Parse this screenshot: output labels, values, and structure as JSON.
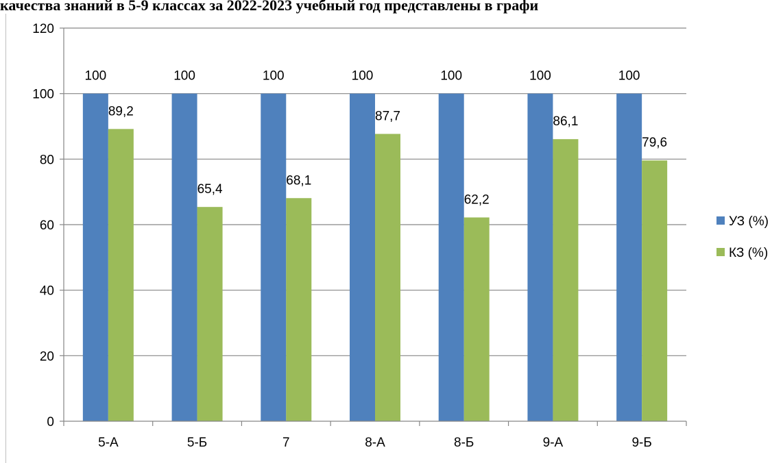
{
  "document": {
    "heading": "качества знаний в 5-9 классах за 2022-2023 учебный год представлены в графи"
  },
  "chart_data": {
    "type": "bar",
    "title": "",
    "xlabel": "",
    "ylabel": "",
    "categories": [
      "5-А",
      "5-Б",
      "7",
      "8-А",
      "8-Б",
      "9-А",
      "9-Б"
    ],
    "series": [
      {
        "name": "УЗ (%)",
        "color": "#4f81bd",
        "values": [
          100,
          100,
          100,
          100,
          100,
          100,
          100
        ],
        "labels": [
          "100",
          "100",
          "100",
          "100",
          "100",
          "100",
          "100"
        ]
      },
      {
        "name": "КЗ (%)",
        "color": "#9bbb59",
        "values": [
          89.2,
          65.4,
          68.1,
          87.7,
          62.2,
          86.1,
          79.6
        ],
        "labels": [
          "89,2",
          "65,4",
          "68,1",
          "87,7",
          "62,2",
          "86,1",
          "79,6"
        ]
      }
    ],
    "ylim": [
      0,
      120
    ],
    "yticks": [
      0,
      20,
      40,
      60,
      80,
      100,
      120
    ],
    "ytick_labels": [
      "0",
      "20",
      "40",
      "60",
      "80",
      "100",
      "120"
    ],
    "grid": true,
    "legend": "right"
  }
}
